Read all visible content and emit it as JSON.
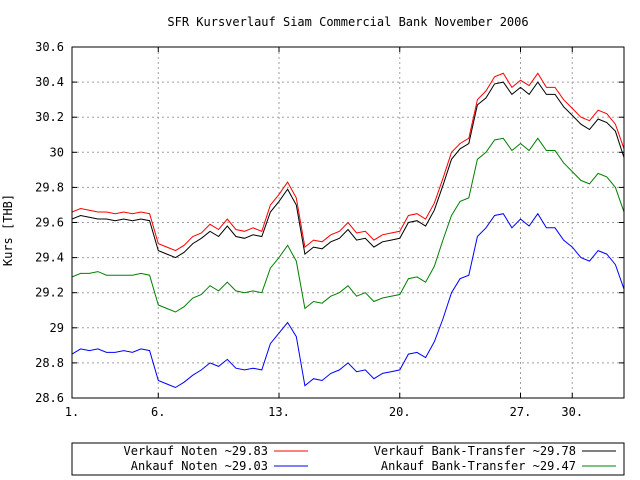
{
  "chart_data": {
    "type": "line",
    "title": "SFR Kursverlauf Siam Commercial Bank November 2006",
    "xlabel": "",
    "ylabel": "Kurs [THB]",
    "xlim": [
      1,
      33
    ],
    "ylim": [
      28.6,
      30.6
    ],
    "grid": true,
    "legend_position": "bottom",
    "x_ticks": [
      {
        "value": 1,
        "label": "1."
      },
      {
        "value": 6,
        "label": "6."
      },
      {
        "value": 13,
        "label": "13."
      },
      {
        "value": 20,
        "label": "20."
      },
      {
        "value": 27,
        "label": "27."
      },
      {
        "value": 30,
        "label": "30."
      }
    ],
    "y_ticks": [
      {
        "value": 28.6,
        "label": "28.6"
      },
      {
        "value": 28.8,
        "label": "28.8"
      },
      {
        "value": 29.0,
        "label": "29"
      },
      {
        "value": 29.2,
        "label": "29.2"
      },
      {
        "value": 29.4,
        "label": "29.4"
      },
      {
        "value": 29.6,
        "label": "29.6"
      },
      {
        "value": 29.8,
        "label": "29.8"
      },
      {
        "value": 30.0,
        "label": "30"
      },
      {
        "value": 30.2,
        "label": "30.2"
      },
      {
        "value": 30.4,
        "label": "30.4"
      },
      {
        "value": 30.6,
        "label": "30.6"
      }
    ],
    "series": [
      {
        "name": "Verkauf Noten ~29.83",
        "color": "#ff0000",
        "points": [
          [
            1,
            29.66
          ],
          [
            1.5,
            29.68
          ],
          [
            2,
            29.67
          ],
          [
            2.5,
            29.66
          ],
          [
            3,
            29.66
          ],
          [
            3.5,
            29.65
          ],
          [
            4,
            29.66
          ],
          [
            4.5,
            29.65
          ],
          [
            5,
            29.66
          ],
          [
            5.5,
            29.65
          ],
          [
            6,
            29.48
          ],
          [
            6.5,
            29.46
          ],
          [
            7,
            29.44
          ],
          [
            7.5,
            29.47
          ],
          [
            8,
            29.52
          ],
          [
            8.5,
            29.54
          ],
          [
            9,
            29.59
          ],
          [
            9.5,
            29.56
          ],
          [
            10,
            29.62
          ],
          [
            10.5,
            29.56
          ],
          [
            11,
            29.55
          ],
          [
            11.5,
            29.57
          ],
          [
            12,
            29.55
          ],
          [
            12.5,
            29.7
          ],
          [
            13,
            29.76
          ],
          [
            13.5,
            29.83
          ],
          [
            14,
            29.74
          ],
          [
            14.5,
            29.46
          ],
          [
            15,
            29.5
          ],
          [
            15.5,
            29.49
          ],
          [
            16,
            29.53
          ],
          [
            16.5,
            29.55
          ],
          [
            17,
            29.6
          ],
          [
            17.5,
            29.54
          ],
          [
            18,
            29.55
          ],
          [
            18.5,
            29.5
          ],
          [
            19,
            29.53
          ],
          [
            19.5,
            29.54
          ],
          [
            20,
            29.55
          ],
          [
            20.5,
            29.64
          ],
          [
            21,
            29.65
          ],
          [
            21.5,
            29.62
          ],
          [
            22,
            29.71
          ],
          [
            22.5,
            29.85
          ],
          [
            23,
            30.0
          ],
          [
            23.5,
            30.05
          ],
          [
            24,
            30.08
          ],
          [
            24.5,
            30.3
          ],
          [
            25,
            30.35
          ],
          [
            25.5,
            30.43
          ],
          [
            26,
            30.45
          ],
          [
            26.5,
            30.37
          ],
          [
            27,
            30.41
          ],
          [
            27.5,
            30.38
          ],
          [
            28,
            30.45
          ],
          [
            28.5,
            30.37
          ],
          [
            29,
            30.37
          ],
          [
            29.5,
            30.3
          ],
          [
            30,
            30.25
          ],
          [
            30.5,
            30.2
          ],
          [
            31,
            30.18
          ],
          [
            31.5,
            30.24
          ],
          [
            32,
            30.22
          ],
          [
            32.5,
            30.16
          ],
          [
            33,
            30.02
          ],
          [
            33.5,
            30.03
          ],
          [
            34,
            30.02
          ]
        ]
      },
      {
        "name": "Ankauf Noten ~29.03",
        "color": "#0000ff",
        "points": [
          [
            1,
            28.85
          ],
          [
            1.5,
            28.88
          ],
          [
            2,
            28.87
          ],
          [
            2.5,
            28.88
          ],
          [
            3,
            28.86
          ],
          [
            3.5,
            28.86
          ],
          [
            4,
            28.87
          ],
          [
            4.5,
            28.86
          ],
          [
            5,
            28.88
          ],
          [
            5.5,
            28.87
          ],
          [
            6,
            28.7
          ],
          [
            6.5,
            28.68
          ],
          [
            7,
            28.66
          ],
          [
            7.5,
            28.69
          ],
          [
            8,
            28.73
          ],
          [
            8.5,
            28.76
          ],
          [
            9,
            28.8
          ],
          [
            9.5,
            28.78
          ],
          [
            10,
            28.82
          ],
          [
            10.5,
            28.77
          ],
          [
            11,
            28.76
          ],
          [
            11.5,
            28.77
          ],
          [
            12,
            28.76
          ],
          [
            12.5,
            28.91
          ],
          [
            13,
            28.97
          ],
          [
            13.5,
            29.03
          ],
          [
            14,
            28.95
          ],
          [
            14.5,
            28.67
          ],
          [
            15,
            28.71
          ],
          [
            15.5,
            28.7
          ],
          [
            16,
            28.74
          ],
          [
            16.5,
            28.76
          ],
          [
            17,
            28.8
          ],
          [
            17.5,
            28.75
          ],
          [
            18,
            28.76
          ],
          [
            18.5,
            28.71
          ],
          [
            19,
            28.74
          ],
          [
            19.5,
            28.75
          ],
          [
            20,
            28.76
          ],
          [
            20.5,
            28.85
          ],
          [
            21,
            28.86
          ],
          [
            21.5,
            28.83
          ],
          [
            22,
            28.92
          ],
          [
            22.5,
            29.05
          ],
          [
            23,
            29.2
          ],
          [
            23.5,
            29.28
          ],
          [
            24,
            29.3
          ],
          [
            24.5,
            29.52
          ],
          [
            25,
            29.57
          ],
          [
            25.5,
            29.64
          ],
          [
            26,
            29.65
          ],
          [
            26.5,
            29.57
          ],
          [
            27,
            29.62
          ],
          [
            27.5,
            29.58
          ],
          [
            28,
            29.65
          ],
          [
            28.5,
            29.57
          ],
          [
            29,
            29.57
          ],
          [
            29.5,
            29.5
          ],
          [
            30,
            29.46
          ],
          [
            30.5,
            29.4
          ],
          [
            31,
            29.38
          ],
          [
            31.5,
            29.44
          ],
          [
            32,
            29.42
          ],
          [
            32.5,
            29.36
          ],
          [
            33,
            29.22
          ],
          [
            33.5,
            29.23
          ],
          [
            34,
            29.22
          ]
        ]
      },
      {
        "name": "Verkauf Bank-Transfer ~29.78",
        "color": "#000000",
        "points": [
          [
            1,
            29.62
          ],
          [
            1.5,
            29.64
          ],
          [
            2,
            29.63
          ],
          [
            2.5,
            29.62
          ],
          [
            3,
            29.62
          ],
          [
            3.5,
            29.61
          ],
          [
            4,
            29.62
          ],
          [
            4.5,
            29.61
          ],
          [
            5,
            29.62
          ],
          [
            5.5,
            29.61
          ],
          [
            6,
            29.44
          ],
          [
            6.5,
            29.42
          ],
          [
            7,
            29.4
          ],
          [
            7.5,
            29.43
          ],
          [
            8,
            29.48
          ],
          [
            8.5,
            29.51
          ],
          [
            9,
            29.55
          ],
          [
            9.5,
            29.52
          ],
          [
            10,
            29.58
          ],
          [
            10.5,
            29.52
          ],
          [
            11,
            29.51
          ],
          [
            11.5,
            29.53
          ],
          [
            12,
            29.52
          ],
          [
            12.5,
            29.66
          ],
          [
            13,
            29.72
          ],
          [
            13.5,
            29.79
          ],
          [
            14,
            29.7
          ],
          [
            14.5,
            29.42
          ],
          [
            15,
            29.46
          ],
          [
            15.5,
            29.45
          ],
          [
            16,
            29.49
          ],
          [
            16.5,
            29.51
          ],
          [
            17,
            29.56
          ],
          [
            17.5,
            29.5
          ],
          [
            18,
            29.51
          ],
          [
            18.5,
            29.46
          ],
          [
            19,
            29.49
          ],
          [
            19.5,
            29.5
          ],
          [
            20,
            29.51
          ],
          [
            20.5,
            29.6
          ],
          [
            21,
            29.61
          ],
          [
            21.5,
            29.58
          ],
          [
            22,
            29.67
          ],
          [
            22.5,
            29.81
          ],
          [
            23,
            29.96
          ],
          [
            23.5,
            30.02
          ],
          [
            24,
            30.05
          ],
          [
            24.5,
            30.27
          ],
          [
            25,
            30.31
          ],
          [
            25.5,
            30.39
          ],
          [
            26,
            30.4
          ],
          [
            26.5,
            30.33
          ],
          [
            27,
            30.37
          ],
          [
            27.5,
            30.33
          ],
          [
            28,
            30.4
          ],
          [
            28.5,
            30.33
          ],
          [
            29,
            30.33
          ],
          [
            29.5,
            30.26
          ],
          [
            30,
            30.21
          ],
          [
            30.5,
            30.16
          ],
          [
            31,
            30.13
          ],
          [
            31.5,
            30.19
          ],
          [
            32,
            30.17
          ],
          [
            32.5,
            30.12
          ],
          [
            33,
            29.97
          ],
          [
            33.5,
            29.98
          ],
          [
            34,
            29.97
          ]
        ]
      },
      {
        "name": "Ankauf Bank-Transfer ~29.47",
        "color": "#008000",
        "points": [
          [
            1,
            29.29
          ],
          [
            1.5,
            29.31
          ],
          [
            2,
            29.31
          ],
          [
            2.5,
            29.32
          ],
          [
            3,
            29.3
          ],
          [
            3.5,
            29.3
          ],
          [
            4,
            29.3
          ],
          [
            4.5,
            29.3
          ],
          [
            5,
            29.31
          ],
          [
            5.5,
            29.3
          ],
          [
            6,
            29.13
          ],
          [
            6.5,
            29.11
          ],
          [
            7,
            29.09
          ],
          [
            7.5,
            29.12
          ],
          [
            8,
            29.17
          ],
          [
            8.5,
            29.19
          ],
          [
            9,
            29.24
          ],
          [
            9.5,
            29.21
          ],
          [
            10,
            29.26
          ],
          [
            10.5,
            29.21
          ],
          [
            11,
            29.2
          ],
          [
            11.5,
            29.21
          ],
          [
            12,
            29.2
          ],
          [
            12.5,
            29.34
          ],
          [
            13,
            29.4
          ],
          [
            13.5,
            29.47
          ],
          [
            14,
            29.38
          ],
          [
            14.5,
            29.11
          ],
          [
            15,
            29.15
          ],
          [
            15.5,
            29.14
          ],
          [
            16,
            29.18
          ],
          [
            16.5,
            29.2
          ],
          [
            17,
            29.24
          ],
          [
            17.5,
            29.18
          ],
          [
            18,
            29.2
          ],
          [
            18.5,
            29.15
          ],
          [
            19,
            29.17
          ],
          [
            19.5,
            29.18
          ],
          [
            20,
            29.19
          ],
          [
            20.5,
            29.28
          ],
          [
            21,
            29.29
          ],
          [
            21.5,
            29.26
          ],
          [
            22,
            29.35
          ],
          [
            22.5,
            29.5
          ],
          [
            23,
            29.64
          ],
          [
            23.5,
            29.72
          ],
          [
            24,
            29.74
          ],
          [
            24.5,
            29.96
          ],
          [
            25,
            30.0
          ],
          [
            25.5,
            30.07
          ],
          [
            26,
            30.08
          ],
          [
            26.5,
            30.01
          ],
          [
            27,
            30.05
          ],
          [
            27.5,
            30.01
          ],
          [
            28,
            30.08
          ],
          [
            28.5,
            30.01
          ],
          [
            29,
            30.01
          ],
          [
            29.5,
            29.94
          ],
          [
            30,
            29.89
          ],
          [
            30.5,
            29.84
          ],
          [
            31,
            29.82
          ],
          [
            31.5,
            29.88
          ],
          [
            32,
            29.86
          ],
          [
            32.5,
            29.8
          ],
          [
            33,
            29.66
          ],
          [
            33.5,
            29.67
          ],
          [
            34,
            29.66
          ]
        ]
      }
    ]
  }
}
